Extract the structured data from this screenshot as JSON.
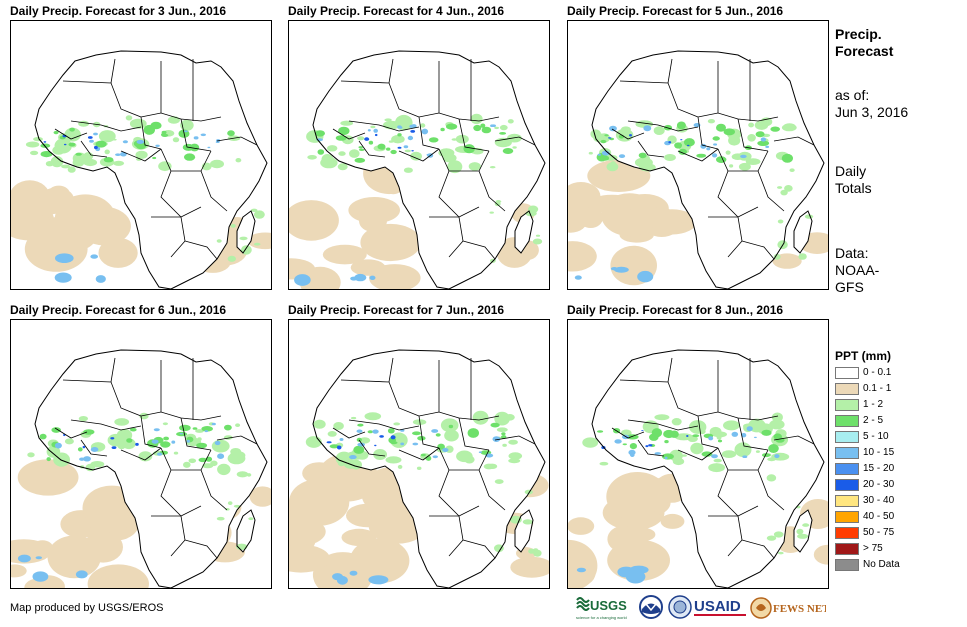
{
  "panels": [
    {
      "title": "Daily Precip. Forecast for 3 Jun., 2016"
    },
    {
      "title": "Daily Precip. Forecast for 4 Jun., 2016"
    },
    {
      "title": "Daily Precip. Forecast for 5 Jun., 2016"
    },
    {
      "title": "Daily Precip. Forecast for 6 Jun., 2016"
    },
    {
      "title": "Daily Precip. Forecast for 7 Jun., 2016"
    },
    {
      "title": "Daily Precip. Forecast for 8 Jun., 2016"
    }
  ],
  "sidebar": {
    "heading_line1": "Precip.",
    "heading_line2": "Forecast",
    "asof_line1": "as of:",
    "asof_line2": "Jun 3, 2016",
    "totals_line1": "Daily",
    "totals_line2": "Totals",
    "source_line1": "Data:",
    "source_line2": "NOAA-",
    "source_line3": "GFS"
  },
  "legend": {
    "title": "PPT (mm)",
    "items": [
      {
        "label": "0 - 0.1",
        "color": "#ffffff"
      },
      {
        "label": "0.1 - 1",
        "color": "#ecd9b8"
      },
      {
        "label": "1 - 2",
        "color": "#b4f0a8"
      },
      {
        "label": "2 - 5",
        "color": "#6ee06a"
      },
      {
        "label": "5 - 10",
        "color": "#a8eef0"
      },
      {
        "label": "10 - 15",
        "color": "#78bff0"
      },
      {
        "label": "15 - 20",
        "color": "#4a90f0"
      },
      {
        "label": "20 - 30",
        "color": "#1a5ce8"
      },
      {
        "label": "30 - 40",
        "color": "#ffe680"
      },
      {
        "label": "40 - 50",
        "color": "#ffa500"
      },
      {
        "label": "50 - 75",
        "color": "#ff3c00"
      },
      {
        "label": "> 75",
        "color": "#a01818"
      },
      {
        "label": "No Data",
        "color": "#8c8c8c"
      }
    ]
  },
  "footer": {
    "credit": "Map produced by USGS/EROS",
    "logo_usgs": "USGS",
    "logo_usgs_tagline": "science for a changing world",
    "logo_usaid": "USAID",
    "logo_fews": "FEWS NET"
  },
  "colors": {
    "land": "#ffffff",
    "border": "#000000",
    "dry_rain": "#ecd9b8",
    "light_rain": "#b4f0a8",
    "moderate_rain": "#6ee06a",
    "heavy_rain": "#78bff0",
    "very_heavy_rain": "#1a5ce8"
  }
}
